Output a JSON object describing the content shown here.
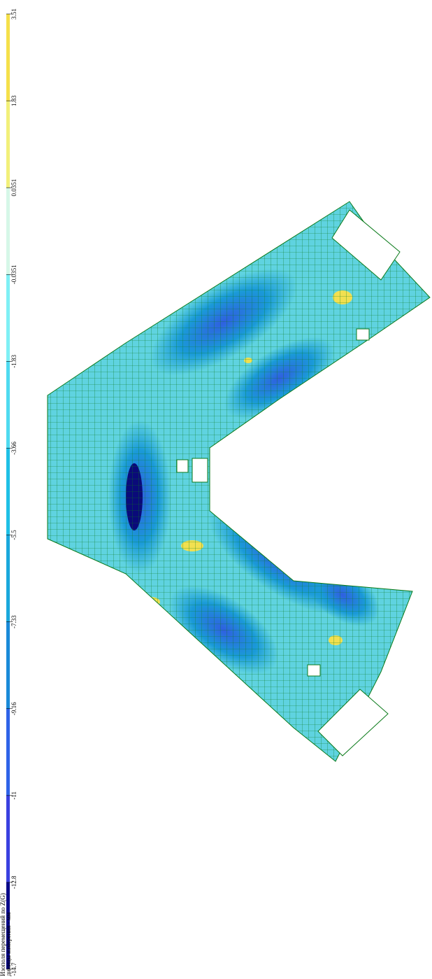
{
  "legend": {
    "levels": [
      3.51,
      1.83,
      0.0351,
      -0.0351,
      -1.83,
      -3.66,
      -5.5,
      -7.33,
      -9.16,
      -11,
      -12.8,
      -14.7
    ],
    "colors": [
      "#f5e04a",
      "#f2f07a",
      "#d6f7e8",
      "#7ff0f5",
      "#4fdaf0",
      "#1fc0e6",
      "#1aa8dc",
      "#1a8ad8",
      "#2f63e8",
      "#3a40e0",
      "#0a0a8a"
    ]
  },
  "caption": {
    "title": "Изополя перемещений по Z(G)",
    "units": "диницы измерения - мм"
  }
}
